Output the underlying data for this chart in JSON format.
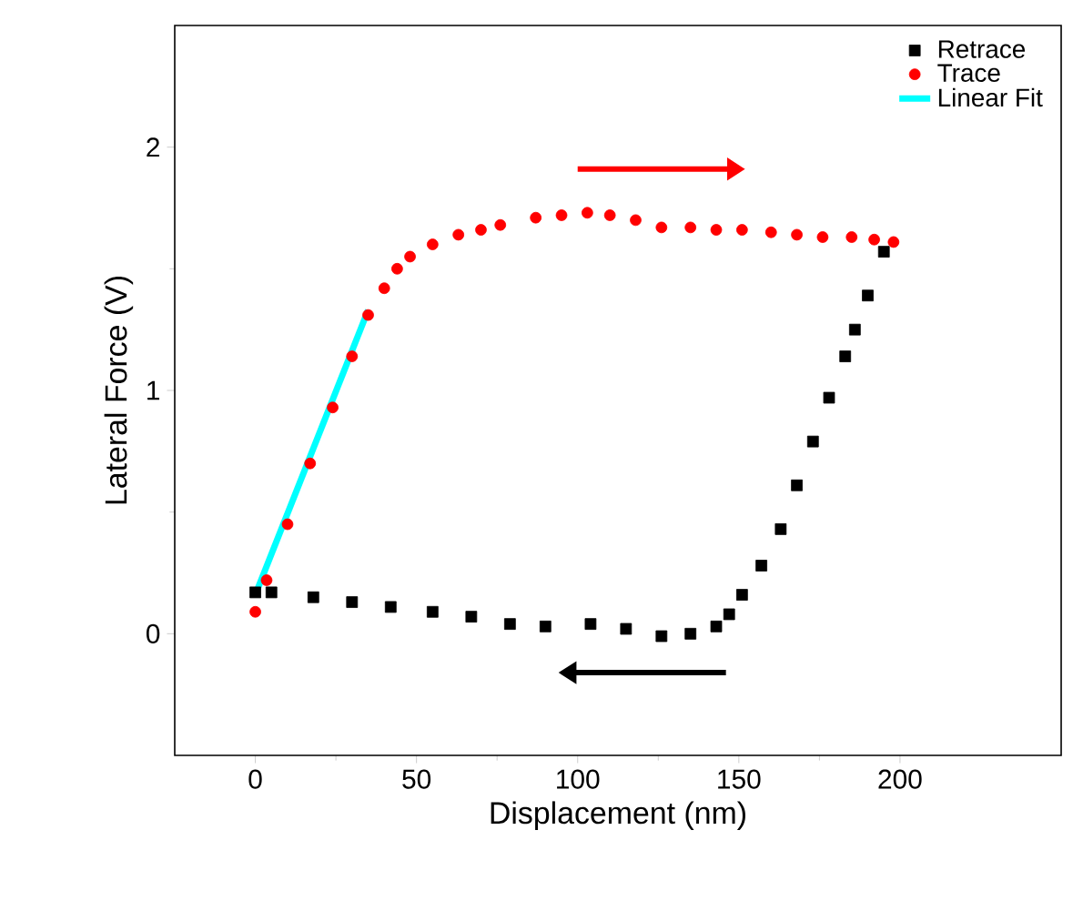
{
  "chart_data": {
    "type": "scatter",
    "xlabel": "Displacement (nm)",
    "ylabel": "Lateral Force (V)",
    "xlim": [
      -25,
      250
    ],
    "ylim": [
      -0.5,
      2.5
    ],
    "xticks": [
      0,
      50,
      100,
      150,
      200
    ],
    "yticks": [
      0,
      1,
      2
    ],
    "grid": false,
    "legend": "top right",
    "series": [
      {
        "name": "Retrace",
        "marker": "square",
        "color": "#000000",
        "x": [
          195,
          190,
          186,
          183,
          178,
          173,
          168,
          163,
          157,
          151,
          147,
          143,
          135,
          126,
          115,
          104,
          90,
          79,
          67,
          55,
          42,
          30,
          18,
          5,
          0
        ],
        "values": [
          1.57,
          1.39,
          1.25,
          1.14,
          0.97,
          0.79,
          0.61,
          0.43,
          0.28,
          0.16,
          0.08,
          0.03,
          0.0,
          -0.01,
          0.02,
          0.04,
          0.03,
          0.04,
          0.07,
          0.09,
          0.11,
          0.13,
          0.15,
          0.17,
          0.17
        ]
      },
      {
        "name": "Trace",
        "marker": "circle",
        "color": "#ff0000",
        "x": [
          0,
          3.5,
          10,
          17,
          24,
          30,
          35,
          40,
          44,
          48,
          55,
          63,
          70,
          76,
          87,
          95,
          103,
          110,
          118,
          126,
          135,
          143,
          151,
          160,
          168,
          176,
          185,
          192,
          198
        ],
        "values": [
          0.09,
          0.22,
          0.45,
          0.7,
          0.93,
          1.14,
          1.31,
          1.42,
          1.5,
          1.55,
          1.6,
          1.64,
          1.66,
          1.68,
          1.71,
          1.72,
          1.73,
          1.72,
          1.7,
          1.67,
          1.67,
          1.66,
          1.66,
          1.65,
          1.64,
          1.63,
          1.63,
          1.62,
          1.61
        ]
      },
      {
        "name": "Linear Fit",
        "type": "line",
        "color": "#00ffff",
        "x": [
          0,
          35
        ],
        "values": [
          0.16,
          1.33
        ]
      }
    ]
  }
}
